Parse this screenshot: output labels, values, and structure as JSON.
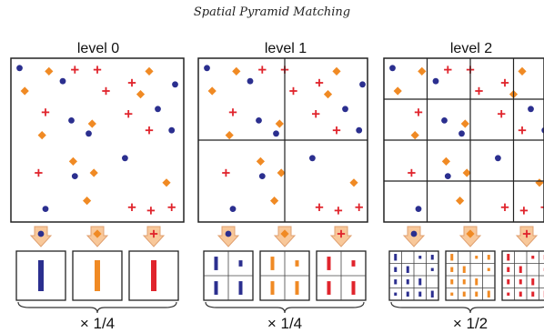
{
  "title": "Spatial Pyramid Matching",
  "colors": {
    "circle": "#2b2f8f",
    "diamond": "#f08a24",
    "plus": "#e0242c",
    "arrow_fill": "#f8c89a",
    "arrow_stroke": "#e0a070",
    "frame": "#222222"
  },
  "symbols": {
    "circle": "circle-marker",
    "diamond": "diamond-marker",
    "plus": "plus-marker"
  },
  "levels": [
    {
      "label": "level 0",
      "weight": "× 1/4",
      "grid": 1
    },
    {
      "label": "level 1",
      "weight": "× 1/4",
      "grid": 2
    },
    {
      "label": "level 2",
      "weight": "× 1/2",
      "grid": 4
    }
  ],
  "points": [
    {
      "t": "c",
      "x": 0.05,
      "y": 0.06
    },
    {
      "t": "d",
      "x": 0.22,
      "y": 0.08
    },
    {
      "t": "p",
      "x": 0.37,
      "y": 0.07
    },
    {
      "t": "p",
      "x": 0.5,
      "y": 0.07
    },
    {
      "t": "d",
      "x": 0.8,
      "y": 0.08
    },
    {
      "t": "c",
      "x": 0.95,
      "y": 0.16
    },
    {
      "t": "d",
      "x": 0.08,
      "y": 0.2
    },
    {
      "t": "c",
      "x": 0.3,
      "y": 0.14
    },
    {
      "t": "p",
      "x": 0.55,
      "y": 0.2
    },
    {
      "t": "d",
      "x": 0.75,
      "y": 0.22
    },
    {
      "t": "p",
      "x": 0.7,
      "y": 0.15
    },
    {
      "t": "p",
      "x": 0.2,
      "y": 0.33
    },
    {
      "t": "c",
      "x": 0.35,
      "y": 0.38
    },
    {
      "t": "d",
      "x": 0.47,
      "y": 0.4
    },
    {
      "t": "c",
      "x": 0.45,
      "y": 0.46
    },
    {
      "t": "p",
      "x": 0.68,
      "y": 0.34
    },
    {
      "t": "c",
      "x": 0.85,
      "y": 0.31
    },
    {
      "t": "p",
      "x": 0.8,
      "y": 0.44
    },
    {
      "t": "c",
      "x": 0.93,
      "y": 0.44
    },
    {
      "t": "d",
      "x": 0.18,
      "y": 0.47
    },
    {
      "t": "d",
      "x": 0.36,
      "y": 0.63
    },
    {
      "t": "c",
      "x": 0.66,
      "y": 0.61
    },
    {
      "t": "p",
      "x": 0.16,
      "y": 0.7
    },
    {
      "t": "c",
      "x": 0.37,
      "y": 0.72
    },
    {
      "t": "d",
      "x": 0.48,
      "y": 0.7
    },
    {
      "t": "d",
      "x": 0.9,
      "y": 0.76
    },
    {
      "t": "d",
      "x": 0.44,
      "y": 0.87
    },
    {
      "t": "c",
      "x": 0.2,
      "y": 0.92
    },
    {
      "t": "p",
      "x": 0.7,
      "y": 0.91
    },
    {
      "t": "p",
      "x": 0.81,
      "y": 0.93
    },
    {
      "t": "p",
      "x": 0.93,
      "y": 0.91
    }
  ]
}
